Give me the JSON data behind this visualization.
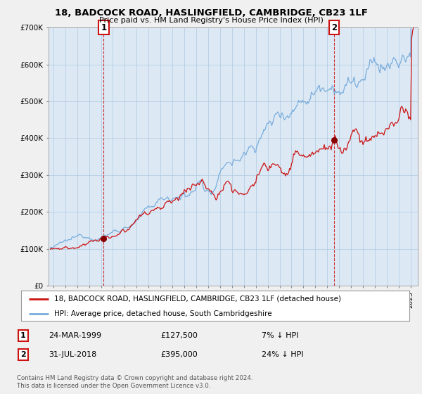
{
  "title": "18, BADCOCK ROAD, HASLINGFIELD, CAMBRIDGE, CB23 1LF",
  "subtitle": "Price paid vs. HM Land Registry's House Price Index (HPI)",
  "ylim": [
    0,
    700000
  ],
  "yticks": [
    0,
    100000,
    200000,
    300000,
    400000,
    500000,
    600000,
    700000
  ],
  "ytick_labels": [
    "£0",
    "£100K",
    "£200K",
    "£300K",
    "£400K",
    "£500K",
    "£600K",
    "£700K"
  ],
  "xlim_start": 1994.6,
  "xlim_end": 2025.6,
  "hpi_color": "#7aaddc",
  "property_color": "#cc1111",
  "sale1_date": 1999.23,
  "sale1_price": 127500,
  "sale2_date": 2018.58,
  "sale2_price": 395000,
  "legend_property": "18, BADCOCK ROAD, HASLINGFIELD, CAMBRIDGE, CB23 1LF (detached house)",
  "legend_hpi": "HPI: Average price, detached house, South Cambridgeshire",
  "annotation1_label": "1",
  "annotation1_date": "24-MAR-1999",
  "annotation1_price": "£127,500",
  "annotation1_pct": "7% ↓ HPI",
  "annotation2_label": "2",
  "annotation2_date": "31-JUL-2018",
  "annotation2_price": "£395,000",
  "annotation2_pct": "24% ↓ HPI",
  "footer": "Contains HM Land Registry data © Crown copyright and database right 2024.\nThis data is licensed under the Open Government Licence v3.0.",
  "bg_color": "#f0f0f0",
  "plot_bg_color": "#dce9f5",
  "grid_color": "#b0c8e0"
}
